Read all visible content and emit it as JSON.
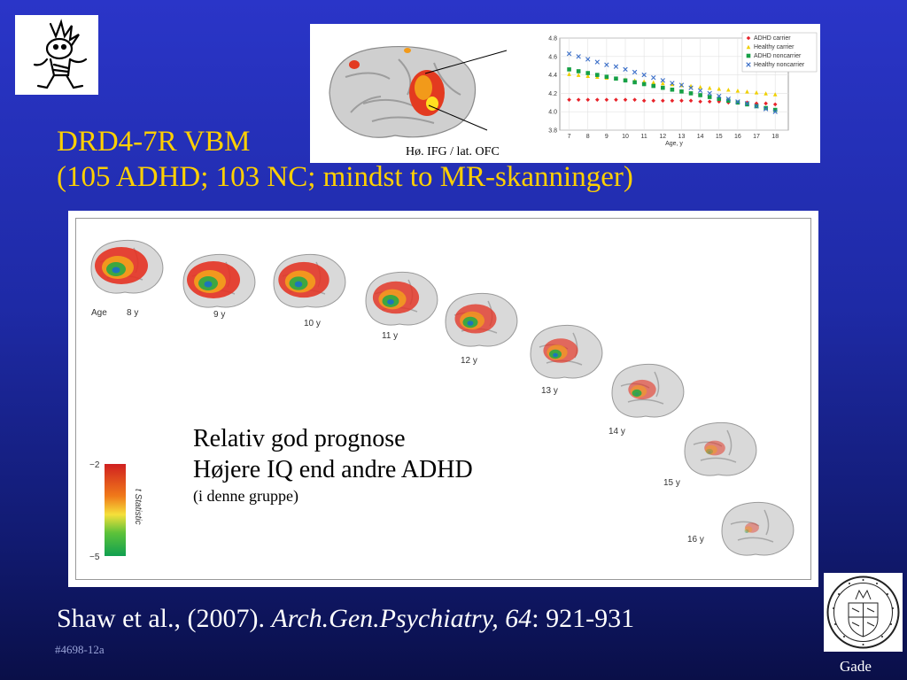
{
  "slide": {
    "title_line1": "DRD4-7R VBM",
    "title_line2": "(105 ADHD; 103 NC; mindst to MR-skanninger)",
    "citation_normal": "Shaw et al., (2007). ",
    "citation_italic": "Arch.Gen.Psychiatry, 64",
    "citation_tail": ": 921-931",
    "slide_id": "#4698-12a",
    "author_tag": "Gade"
  },
  "top_figure": {
    "region_label": "Hø. IFG / lat. OFC"
  },
  "chart_data": {
    "type": "line",
    "x": [
      7,
      8,
      9,
      10,
      11,
      12,
      13,
      14,
      15,
      16,
      17,
      18
    ],
    "xlabel": "Age, y",
    "ylabel": "",
    "xlim": [
      6.5,
      18.7
    ],
    "ylim": [
      3.8,
      4.8
    ],
    "yticks": [
      "3.8",
      "4.0",
      "4.2",
      "4.4",
      "4.6",
      "4.8"
    ],
    "xticks": [
      "7",
      "8",
      "9",
      "10",
      "11",
      "12",
      "13",
      "14",
      "15",
      "16",
      "17",
      "18"
    ],
    "legend_position": "top-right",
    "series": [
      {
        "name": "ADHD carrier",
        "color": "#e8232a",
        "marker": "diamond",
        "x": [
          7,
          7.5,
          8,
          8.5,
          9,
          9.5,
          10,
          10.5,
          11,
          11.5,
          12,
          12.5,
          13,
          13.5,
          14,
          14.5,
          15,
          15.5,
          16,
          16.5,
          17,
          17.5,
          18
        ],
        "y": [
          4.13,
          4.13,
          4.13,
          4.13,
          4.13,
          4.13,
          4.13,
          4.13,
          4.12,
          4.12,
          4.12,
          4.12,
          4.12,
          4.12,
          4.11,
          4.11,
          4.11,
          4.1,
          4.1,
          4.1,
          4.09,
          4.09,
          4.08
        ]
      },
      {
        "name": "Healthy carrier",
        "color": "#f0d000",
        "marker": "triangle",
        "x": [
          7,
          7.5,
          8,
          8.5,
          9,
          9.5,
          10,
          10.5,
          11,
          11.5,
          12,
          12.5,
          13,
          13.5,
          14,
          14.5,
          15,
          15.5,
          16,
          16.5,
          17,
          17.5,
          18
        ],
        "y": [
          4.41,
          4.4,
          4.39,
          4.38,
          4.37,
          4.36,
          4.35,
          4.34,
          4.33,
          4.32,
          4.31,
          4.3,
          4.29,
          4.28,
          4.27,
          4.26,
          4.25,
          4.24,
          4.23,
          4.22,
          4.21,
          4.2,
          4.19
        ]
      },
      {
        "name": "ADHD noncarrier",
        "color": "#16a046",
        "marker": "square",
        "x": [
          7,
          7.5,
          8,
          8.5,
          9,
          9.5,
          10,
          10.5,
          11,
          11.5,
          12,
          12.5,
          13,
          13.5,
          14,
          14.5,
          15,
          15.5,
          16,
          16.5,
          17,
          17.5,
          18
        ],
        "y": [
          4.46,
          4.44,
          4.42,
          4.4,
          4.38,
          4.36,
          4.34,
          4.32,
          4.3,
          4.28,
          4.26,
          4.24,
          4.22,
          4.2,
          4.18,
          4.16,
          4.14,
          4.12,
          4.1,
          4.08,
          4.06,
          4.04,
          4.02
        ]
      },
      {
        "name": "Healthy noncarrier",
        "color": "#3a6ec8",
        "marker": "x",
        "x": [
          7,
          7.5,
          8,
          8.5,
          9,
          9.5,
          10,
          10.5,
          11,
          11.5,
          12,
          12.5,
          13,
          13.5,
          14,
          14.5,
          15,
          15.5,
          16,
          16.5,
          17,
          17.5,
          18
        ],
        "y": [
          4.63,
          4.6,
          4.57,
          4.54,
          4.51,
          4.49,
          4.46,
          4.43,
          4.4,
          4.37,
          4.34,
          4.31,
          4.29,
          4.26,
          4.23,
          4.2,
          4.17,
          4.14,
          4.11,
          4.09,
          4.06,
          4.03,
          4.0
        ]
      }
    ]
  },
  "brain_series": {
    "age_label": "Age",
    "ages": [
      "8 y",
      "9 y",
      "10 y",
      "11 y",
      "12 y",
      "13 y",
      "14 y",
      "15 y",
      "16 y"
    ],
    "colorbar_top": "−2",
    "colorbar_bottom": "−5",
    "colorbar_label": "t Statistic"
  },
  "overlay_text": {
    "line1": "Relativ god prognose",
    "line2": "Højere IQ end andre ADHD",
    "line3": "(i denne gruppe)"
  }
}
